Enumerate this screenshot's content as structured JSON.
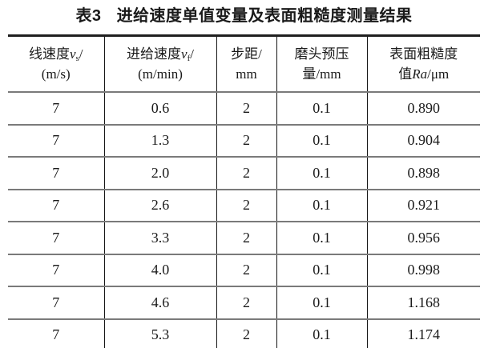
{
  "caption": {
    "label": "表3",
    "text": "进给速度单值变量及表面粗糙度测量结果"
  },
  "table": {
    "columns": [
      {
        "zh": "线速度",
        "var": "v",
        "sub": "s",
        "slash": "/",
        "unit": "(m/s)"
      },
      {
        "zh": "进给速度",
        "var": "v",
        "sub": "f",
        "slash": "/",
        "unit": "(m/min)"
      },
      {
        "zh": "步距",
        "var": "",
        "sub": "",
        "slash": "/",
        "unit": "mm"
      },
      {
        "zh": "磨头预压",
        "var": "",
        "sub": "",
        "slash": "",
        "unit": "量/mm"
      },
      {
        "zh": "表面粗糙度",
        "var": "",
        "sub": "",
        "slash": "",
        "unit_prefix": "值",
        "unit_var": "Ra",
        "unit_suffix": "/μm"
      }
    ],
    "rows": [
      [
        "7",
        "0.6",
        "2",
        "0.1",
        "0.890"
      ],
      [
        "7",
        "1.3",
        "2",
        "0.1",
        "0.904"
      ],
      [
        "7",
        "2.0",
        "2",
        "0.1",
        "0.898"
      ],
      [
        "7",
        "2.6",
        "2",
        "0.1",
        "0.921"
      ],
      [
        "7",
        "3.3",
        "2",
        "0.1",
        "0.956"
      ],
      [
        "7",
        "4.0",
        "2",
        "0.1",
        "0.998"
      ],
      [
        "7",
        "4.6",
        "2",
        "0.1",
        "1.168"
      ],
      [
        "7",
        "5.3",
        "2",
        "0.1",
        "1.174"
      ]
    ]
  }
}
